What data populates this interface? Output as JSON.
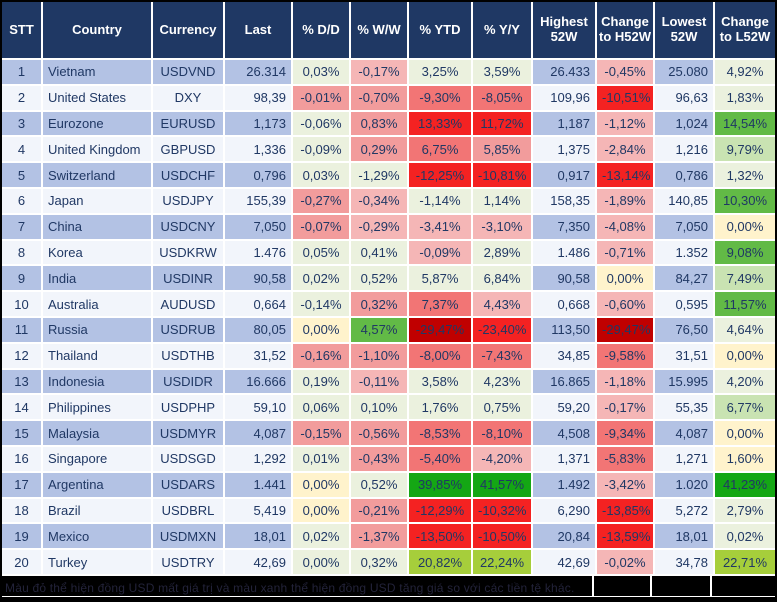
{
  "colors": {
    "headerBg": "#1F3864",
    "headerText": "#FFFFFF",
    "rowBlue": "#B3C2E4",
    "rowWhite": "#F2F5FB",
    "text": "#203864",
    "gridBorder": "#FFFFFF",
    "outerBorder": "#000000",
    "footerBg": "#000000",
    "footerText": "#23233A",
    "pg": "#EBF1DE",
    "py": "#FFF3CC",
    "lg": "#C9E3B2",
    "mg": "#62BA46",
    "gb": "#14A714",
    "lm": "#A6CE3B",
    "pp": "#F5B6B6",
    "pk": "#F29C9C",
    "mr": "#F27575",
    "rd": "#F42222",
    "dr": "#C00000"
  },
  "table": {
    "columns": [
      {
        "key": "stt",
        "label": "STT",
        "align": "center"
      },
      {
        "key": "country",
        "label": "Country",
        "align": "left"
      },
      {
        "key": "currency",
        "label": "Currency",
        "align": "center"
      },
      {
        "key": "last",
        "label": "Last",
        "align": "right"
      },
      {
        "key": "pct-dd",
        "label": "% D/D",
        "align": "center"
      },
      {
        "key": "pct-ww",
        "label": "% W/W",
        "align": "center"
      },
      {
        "key": "pct-ytd",
        "label": "% YTD",
        "align": "center"
      },
      {
        "key": "pct-yy",
        "label": "% Y/Y",
        "align": "center"
      },
      {
        "key": "highest-52w",
        "label": "Highest 52W",
        "align": "right"
      },
      {
        "key": "change-to-h52w",
        "label": "Change to H52W",
        "align": "center"
      },
      {
        "key": "lowest-52w",
        "label": "Lowest 52W",
        "align": "right"
      },
      {
        "key": "change-to-l52w",
        "label": "Change to L52W",
        "align": "center"
      }
    ],
    "rows": [
      [
        "1",
        "Vietnam",
        "USDVND",
        "26.314",
        [
          "0,03%",
          "pg"
        ],
        [
          "-0,17%",
          "pp"
        ],
        [
          "3,25%",
          "pg"
        ],
        [
          "3,59%",
          "pg"
        ],
        "26.433",
        [
          "-0,45%",
          "pp"
        ],
        "25.080",
        [
          "4,92%",
          "pg"
        ]
      ],
      [
        "2",
        "United States",
        "DXY",
        "98,39",
        [
          "-0,01%",
          "pk"
        ],
        [
          "-0,70%",
          "pk"
        ],
        [
          "-9,30%",
          "mr"
        ],
        [
          "-8,05%",
          "mr"
        ],
        "109,96",
        [
          "-10,51%",
          "rd"
        ],
        "96,63",
        [
          "1,83%",
          "pg"
        ]
      ],
      [
        "3",
        "Eurozone",
        "EURUSD",
        "1,173",
        [
          "-0,06%",
          "pg"
        ],
        [
          "0,83%",
          "pk"
        ],
        [
          "13,33%",
          "rd"
        ],
        [
          "11,72%",
          "rd"
        ],
        "1,187",
        [
          "-1,12%",
          "pp"
        ],
        "1,024",
        [
          "14,54%",
          "mg"
        ]
      ],
      [
        "4",
        "United Kingdom",
        "GBPUSD",
        "1,336",
        [
          "-0,09%",
          "pg"
        ],
        [
          "0,29%",
          "pk"
        ],
        [
          "6,75%",
          "mr"
        ],
        [
          "5,85%",
          "pk"
        ],
        "1,375",
        [
          "-2,84%",
          "pp"
        ],
        "1,216",
        [
          "9,79%",
          "lg"
        ]
      ],
      [
        "5",
        "Switzerland",
        "USDCHF",
        "0,796",
        [
          "0,03%",
          "pg"
        ],
        [
          "-1,29%",
          "pg"
        ],
        [
          "-12,25%",
          "rd"
        ],
        [
          "-10,81%",
          "rd"
        ],
        "0,917",
        [
          "-13,14%",
          "rd"
        ],
        "0,786",
        [
          "1,32%",
          "pg"
        ]
      ],
      [
        "6",
        "Japan",
        "USDJPY",
        "155,39",
        [
          "-0,27%",
          "pk"
        ],
        [
          "-0,34%",
          "pp"
        ],
        [
          "-1,14%",
          "pg"
        ],
        [
          "1,14%",
          "pg"
        ],
        "158,35",
        [
          "-1,89%",
          "pp"
        ],
        "140,85",
        [
          "10,30%",
          "mg"
        ]
      ],
      [
        "7",
        "China",
        "USDCNY",
        "7,050",
        [
          "-0,07%",
          "pk"
        ],
        [
          "-0,29%",
          "pp"
        ],
        [
          "-3,41%",
          "pp"
        ],
        [
          "-3,10%",
          "pp"
        ],
        "7,350",
        [
          "-4,08%",
          "pp"
        ],
        "7,050",
        [
          "0,00%",
          "py"
        ]
      ],
      [
        "8",
        "Korea",
        "USDKRW",
        "1.476",
        [
          "0,05%",
          "pg"
        ],
        [
          "0,41%",
          "pg"
        ],
        [
          "-0,09%",
          "pp"
        ],
        [
          "2,89%",
          "pg"
        ],
        "1.486",
        [
          "-0,71%",
          "pp"
        ],
        "1.352",
        [
          "9,08%",
          "mg"
        ]
      ],
      [
        "9",
        "India",
        "USDINR",
        "90,58",
        [
          "0,02%",
          "pg"
        ],
        [
          "0,52%",
          "pg"
        ],
        [
          "5,87%",
          "pg"
        ],
        [
          "6,84%",
          "pg"
        ],
        "90,58",
        [
          "0,00%",
          "py"
        ],
        "84,27",
        [
          "7,49%",
          "lg"
        ]
      ],
      [
        "10",
        "Australia",
        "AUDUSD",
        "0,664",
        [
          "-0,14%",
          "pg"
        ],
        [
          "0,32%",
          "pk"
        ],
        [
          "7,37%",
          "mr"
        ],
        [
          "4,43%",
          "pp"
        ],
        "0,668",
        [
          "-0,60%",
          "pp"
        ],
        "0,595",
        [
          "11,57%",
          "mg"
        ]
      ],
      [
        "11",
        "Russia",
        "USDRUB",
        "80,05",
        [
          "0,00%",
          "py"
        ],
        [
          "4,57%",
          "mg"
        ],
        [
          "-29,47%",
          "dr"
        ],
        [
          "-23,40%",
          "rd"
        ],
        "113,50",
        [
          "-29,47%",
          "dr"
        ],
        "76,50",
        [
          "4,64%",
          "pg"
        ]
      ],
      [
        "12",
        "Thailand",
        "USDTHB",
        "31,52",
        [
          "-0,16%",
          "pk"
        ],
        [
          "-1,10%",
          "pk"
        ],
        [
          "-8,00%",
          "mr"
        ],
        [
          "-7,43%",
          "mr"
        ],
        "34,85",
        [
          "-9,58%",
          "mr"
        ],
        "31,51",
        [
          "0,00%",
          "py"
        ]
      ],
      [
        "13",
        "Indonesia",
        "USDIDR",
        "16.666",
        [
          "0,19%",
          "pg"
        ],
        [
          "-0,11%",
          "pp"
        ],
        [
          "3,58%",
          "pg"
        ],
        [
          "4,23%",
          "pg"
        ],
        "16.865",
        [
          "-1,18%",
          "pp"
        ],
        "15.995",
        [
          "4,20%",
          "pg"
        ]
      ],
      [
        "14",
        "Philippines",
        "USDPHP",
        "59,10",
        [
          "0,06%",
          "pg"
        ],
        [
          "0,10%",
          "pg"
        ],
        [
          "1,76%",
          "pg"
        ],
        [
          "0,75%",
          "pg"
        ],
        "59,20",
        [
          "-0,17%",
          "pp"
        ],
        "55,35",
        [
          "6,77%",
          "lg"
        ]
      ],
      [
        "15",
        "Malaysia",
        "USDMYR",
        "4,087",
        [
          "-0,15%",
          "pk"
        ],
        [
          "-0,56%",
          "pk"
        ],
        [
          "-8,53%",
          "mr"
        ],
        [
          "-8,10%",
          "mr"
        ],
        "4,508",
        [
          "-9,34%",
          "mr"
        ],
        "4,087",
        [
          "0,00%",
          "py"
        ]
      ],
      [
        "16",
        "Singapore",
        "USDSGD",
        "1,292",
        [
          "0,01%",
          "pg"
        ],
        [
          "-0,43%",
          "pk"
        ],
        [
          "-5,40%",
          "mr"
        ],
        [
          "-4,20%",
          "pp"
        ],
        "1,371",
        [
          "-5,83%",
          "mr"
        ],
        "1,271",
        [
          "1,60%",
          "py"
        ]
      ],
      [
        "17",
        "Argentina",
        "USDARS",
        "1.441",
        [
          "0,00%",
          "py"
        ],
        [
          "0,52%",
          "pg"
        ],
        [
          "39,85%",
          "gb"
        ],
        [
          "41,57%",
          "gb"
        ],
        "1.492",
        [
          "-3,42%",
          "pp"
        ],
        "1.020",
        [
          "41,23%",
          "gb"
        ]
      ],
      [
        "18",
        "Brazil",
        "USDBRL",
        "5,419",
        [
          "0,00%",
          "py"
        ],
        [
          "-0,21%",
          "pk"
        ],
        [
          "-12,29%",
          "rd"
        ],
        [
          "-10,32%",
          "rd"
        ],
        "6,290",
        [
          "-13,85%",
          "rd"
        ],
        "5,272",
        [
          "2,79%",
          "pg"
        ]
      ],
      [
        "19",
        "Mexico",
        "USDMXN",
        "18,01",
        [
          "0,02%",
          "pg"
        ],
        [
          "-1,37%",
          "pk"
        ],
        [
          "-13,50%",
          "rd"
        ],
        [
          "-10,50%",
          "rd"
        ],
        "20,84",
        [
          "-13,59%",
          "rd"
        ],
        "18,01",
        [
          "0,02%",
          "pg"
        ]
      ],
      [
        "20",
        "Turkey",
        "USDTRY",
        "42,69",
        [
          "0,00%",
          "pg"
        ],
        [
          "0,32%",
          "pg"
        ],
        [
          "20,82%",
          "lm"
        ],
        [
          "22,24%",
          "lm"
        ],
        "42,69",
        [
          "-0,02%",
          "pp"
        ],
        "34,78",
        [
          "22,71%",
          "lm"
        ]
      ]
    ]
  },
  "footer": {
    "note": "Màu đỏ thể hiện đồng USD mất giá trị và màu xanh thể hiện đồng USD tăng giá so với các tiền tệ khác."
  }
}
